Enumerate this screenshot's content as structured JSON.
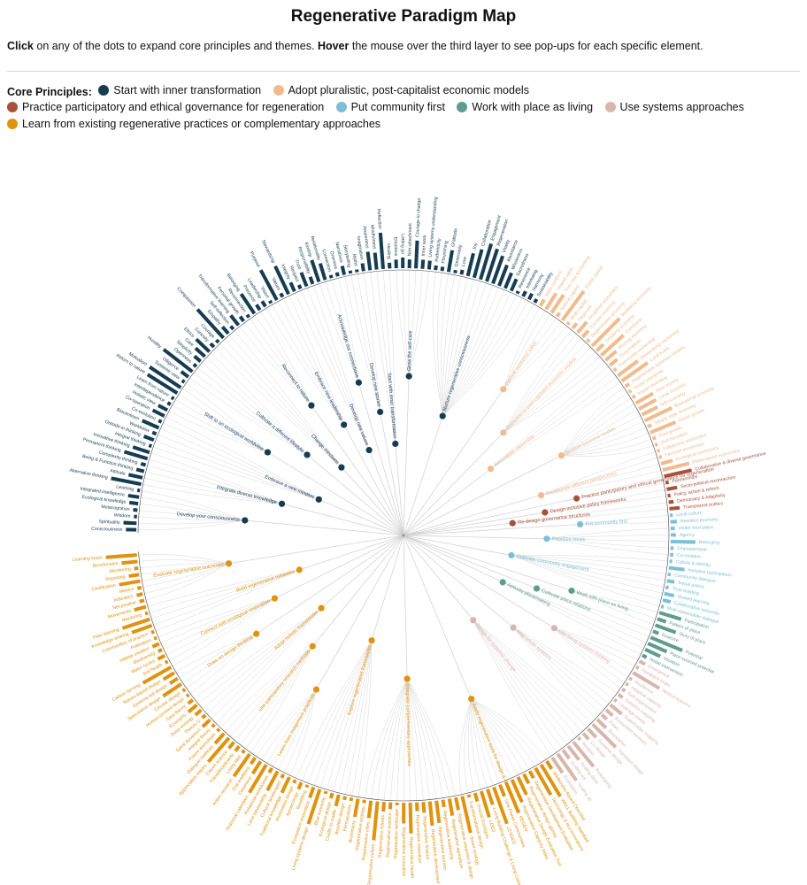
{
  "title": "Regenerative Paradigm Map",
  "instructions": {
    "click_word": "Click",
    "click_text": " on any of the dots to expand core principles and themes. ",
    "hover_word": "Hover",
    "hover_text": " the mouse over the third layer to see pop-ups for each specific element."
  },
  "legend": {
    "title": "Core Principles:",
    "items": [
      {
        "label": "Start with inner transformation",
        "color": "#163c52"
      },
      {
        "label": "Adopt pluralistic, post-capitalist economic models",
        "color": "#f2bb8e"
      },
      {
        "label": "Practice participatory and ethical governance for regeneration",
        "color": "#a9503a"
      },
      {
        "label": "Put community first",
        "color": "#7cc0d8"
      },
      {
        "label": "Work with place as living",
        "color": "#5f9c90"
      },
      {
        "label": "Use systems approaches",
        "color": "#d8b6ae"
      },
      {
        "label": "Learn from existing regenerative practices or complementary approaches",
        "color": "#e0930f"
      }
    ]
  },
  "diagram": {
    "principles": [
      {
        "name": "Start with inner transformation",
        "color": "#163c52",
        "themes": [
          {
            "label": "Develop your consciousness",
            "leaves": [
              "Consciousness",
              "Spirituality",
              "Wisdom",
              "Metacognition",
              "Ecological knowledge",
              "Integrated intelligence",
              "Learning"
            ]
          },
          {
            "label": "Integrate diverse knowledge",
            "leaves": [
              "Alternative thinking",
              "Attitude",
              "Being & Function thinking",
              "Complexity thinking",
              "Permanent thinking",
              "Innovative thinking"
            ]
          },
          {
            "label": "Embrace a new mindset",
            "leaves": [
              "Integral thinking",
              "Outside-in thinking",
              "Worldview",
              "Biocentrism",
              "Co-evolution",
              "Co-operation"
            ]
          },
          {
            "label": "Shift to an ecological worldview",
            "leaves": [
              "Holistic view",
              "Interdependence",
              "Learn from nature",
              "Return to nature",
              "Mutualism",
              "Systemic view"
            ]
          },
          {
            "label": "Cultivate a different lifestyle",
            "leaves": [
              "Diligence",
              "Humility",
              "Openness",
              "Simplicity",
              "Care",
              "Ethics"
            ]
          },
          {
            "label": "Change mindsets",
            "leaves": [
              "Curiosity",
              "Courage",
              "Compassion",
              "Empathy",
              "Self-reflection"
            ]
          },
          {
            "label": "Reconnect to nature",
            "leaves": [
              "Transformative learning",
              "Personal growth",
              "Reconnection",
              "Belonging",
              "Presence"
            ]
          },
          {
            "label": "Embrace new leadership",
            "leaves": [
              "Leadership",
              "Vision",
              "Purpose",
              "Values",
              "Stewardship"
            ]
          },
          {
            "label": "Develop new values",
            "leaves": [
              "Integrity",
              "Respect",
              "Trust",
              "Responsibility"
            ]
          },
          {
            "label": "Acknowledge our connections",
            "leaves": [
              "Kinship",
              "Relationality",
              "Connection",
              "Oneness"
            ]
          },
          {
            "label": "Develop new stories",
            "leaves": [
              "Narratives",
              "Storytelling",
              "Myths",
              "Imagination"
            ]
          },
          {
            "label": "Start with inner transformation",
            "leaves": [
              "Awareness",
              "Mindfulness",
              "Reflection",
              "Healing"
            ]
          },
          {
            "label": "Grow the self-care",
            "leaves": [
              "Emotions",
              "Letting go",
              "Non-attachment",
              "Courage to change",
              "Inner work",
              "Living systems understanding"
            ]
          },
          {
            "label": "Nurture regenerative consciousness",
            "leaves": [
              "Authenticity",
              "Flourishing",
              "Gratitude",
              "Generosity",
              "Love",
              "Joy",
              "Collaboration",
              "Engagement",
              "Regeneration",
              "Vitality",
              "Abundance",
              "Wholeness",
              "Sacredness",
              "Reverence",
              "Interbeing",
              "Harmony",
              "Sustainability"
            ]
          }
        ]
      },
      {
        "name": "Adopt pluralistic, post-capitalist economic models",
        "color": "#f2bb8e",
        "themes": [
          {
            "label": "Rethink economic value",
            "leaves": [
              "Value systems",
              "Shared value",
              "True cost accounting",
              "Natural capital",
              "Social capital",
              "Multi-capital"
            ]
          },
          {
            "label": "Transition to post-capitalist economic models",
            "leaves": [
              "Degrowth",
              "Doughnut economics",
              "Circular economy",
              "Regenerative economy",
              "Wellbeing economy",
              "Solidarity economy",
              "Commons",
              "Sharing economy"
            ]
          },
          {
            "label": "Reconsider ownership",
            "leaves": [
              "Cooperatives",
              "Community ownership",
              "Stewardship ownership",
              "Land trusts"
            ]
          },
          {
            "label": "Rethink business models",
            "leaves": [
              "Regenerative business models",
              "Social enterprise",
              "Impact investing",
              "Slow money",
              "Local currency",
              "Gift economy",
              "Bioregional economy",
              "Steady state economy",
              "Green growth",
              "Post-growth",
              "Just transition"
            ]
          },
          {
            "label": "Incorporate different perspectives",
            "leaves": [
              "Indigenous economics",
              "Feminist economics",
              "Ecological economics",
              "Place-based economics"
            ]
          }
        ]
      },
      {
        "name": "Practice participatory and ethical governance for regeneration",
        "color": "#a9503a",
        "themes": [
          {
            "label": "Practice participatory and ethical governance for regeneration",
            "leaves": [
              "Collaborative & diverse governance",
              "Partnerships"
            ]
          },
          {
            "label": "Design inclusive policy frameworks",
            "leaves": [
              "Socio-political reconnection",
              "Policy, action & reform"
            ]
          },
          {
            "label": "Re-design governance structures",
            "leaves": [
              "Democracy & Adaptivity",
              "Transparent politics"
            ]
          }
        ]
      },
      {
        "name": "Put community first",
        "color": "#7cc0d8",
        "themes": [
          {
            "label": "Put community first",
            "leaves": [
              "Local culture",
              "Resident economy"
            ]
          },
          {
            "label": "Prioritize locals",
            "leaves": [
              "Visitor-host place",
              "Agency",
              "Belonging",
              "Empowerment",
              "Co-creation"
            ]
          },
          {
            "label": "Cultivate community engagement",
            "leaves": [
              "Culture & identity",
              "Inclusive participation",
              "Community dialogue",
              "Social justice",
              "Trust building",
              "Shared learning",
              "Collaborative networks",
              "Multi-stakeholder dialogue"
            ]
          }
        ]
      },
      {
        "name": "Work with place as living",
        "color": "#5f9c90",
        "themes": [
          {
            "label": "Work with place as living",
            "leaves": [
              "Participation",
              "Pattern of place",
              "Story of place"
            ]
          },
          {
            "label": "Cultivate place relations",
            "leaves": [
              "Essence",
              "Potential"
            ]
          },
          {
            "label": "Activate placemaking",
            "leaves": [
              "Place-sourced potential",
              "Vocation",
              "Nodal intervention"
            ]
          }
        ]
      },
      {
        "name": "Use systems approaches",
        "color": "#d8b6ae",
        "themes": [
          {
            "label": "Use living systems thinking",
            "leaves": [
              "Emergence",
              "Feedback loops",
              "Nested systems",
              "Resilience",
              "Adaptive capacity",
              "Self-organization"
            ]
          },
          {
            "label": "Map whole systems",
            "leaves": [
              "Systems mapping",
              "Leverage points",
              "Stakeholder mapping",
              "Ecosystem services",
              "Flows",
              "Boundaries"
            ]
          },
          {
            "label": "Design for systemic change",
            "leaves": [
              "Transition design",
              "Systemic design",
              "Co-design",
              "Iteration",
              "Prototyping",
              "Scaling deep",
              "Scaling out",
              "Scaling up",
              "Evaluation"
            ]
          }
        ]
      },
      {
        "name": "Learn from existing regenerative practices or complementary approaches",
        "color": "#e0930f",
        "themes": [
          {
            "label": "Apply regenerative tools for design & evaluation",
            "leaves": [
              "Wilderness-Based Checklist",
              "WELL Building Standard",
              "Technology & eco-innovations",
              "Regenerative Development Evaluation",
              "Regenerative design games",
              "Regenerative Design Evaluation Tool",
              "Regenerative Capacity Index",
              "REGEN",
              "One Planet Communities",
              "LENSES",
              "Living Building Challenge & Living Community Challenge",
              "LEED",
              "Fractal Ecologies",
              "Transformational design",
              "Smart ecology"
            ]
          },
          {
            "label": "Integrate complementary approaches",
            "leaves": [
              "Regenerative urbanism & design",
              "Regenerative agriculture",
              "Regenerative leadership",
              "Regenerative tourism",
              "Regenerative development",
              "Regenerative finance",
              "Regenerative education",
              "Regenerative health",
              "Regenerative innovation",
              "Regenerative landscape",
              "Regenerative practice",
              "Regenerative futures",
              "Regenerative culture",
              "Regenerative cities",
              "Regenerative ecology"
            ]
          },
          {
            "label": "Explore regenerative frameworks",
            "leaves": [
              "Biomimicry",
              "Permaculture",
              "Biophilic design",
              "Cradle to cradle",
              "Ecological design",
              "Blue economy",
              "Living systems design",
              "Ecosystem restoration",
              "Rewilding",
              "Agroecology",
              "Restorative design"
            ]
          },
          {
            "label": "Learn from Indigenous practices",
            "leaves": [
              "Traditional knowledge",
              "Cultural landscapes",
              "Land stewardship",
              "Relational worldviews",
              "Seasonal calendars",
              "Ceremony",
              "Oral traditions"
            ]
          },
          {
            "label": "Use participatory research methods",
            "leaves": [
              "Action research",
              "Living labs",
              "Transdisciplinarity",
              "Citizen science",
              "Appreciative inquiry",
              "Dialogue methods",
              "Future workshops"
            ]
          },
          {
            "label": "Adopt holistic frameworks",
            "leaves": [
              "Integral theory",
              "Spiral dynamics",
              "Theory U",
              "Deep ecology",
              "Ecosophy",
              "Gaia theory"
            ]
          },
          {
            "label": "Draw on design thinking",
            "leaves": [
              "Human-centred design",
              "Circular design",
              "Speculative design",
              "Systems-led design",
              "Nature-based design"
            ]
          },
          {
            "label": "Connect with ecological restoration",
            "leaves": [
              "Carbon farming",
              "Soil health",
              "Water cycles",
              "Biodiversity",
              "Habitat creation",
              "Pollinators"
            ]
          },
          {
            "label": "Build regenerative networks",
            "leaves": [
              "Communities of practice",
              "Knowledge sharing",
              "Peer learning",
              "Mentoring",
              "Movements"
            ]
          },
          {
            "label": "Evaluate regenerative outcomes",
            "leaves": [
              "Net positive",
              "Indicators",
              "Metrics",
              "Certification",
              "Reporting",
              "Monitoring",
              "Benchmarks",
              "Learning loops"
            ]
          }
        ]
      }
    ]
  }
}
